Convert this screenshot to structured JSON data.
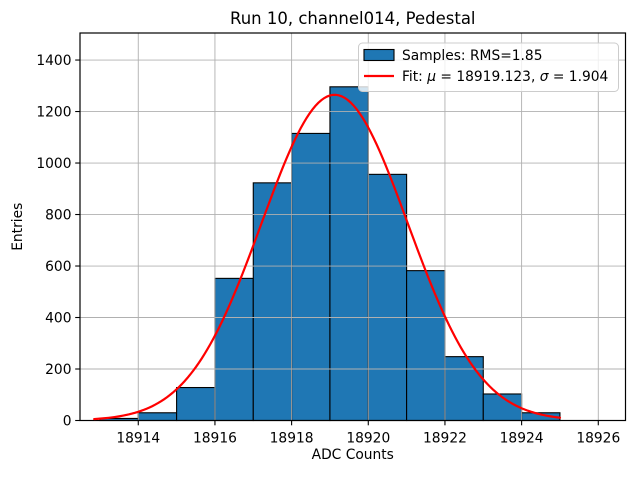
{
  "chart_data": {
    "type": "bar",
    "subtype": "histogram_with_gaussian_fit",
    "title": "Run 10, channel014, Pedestal",
    "xlabel": "ADC Counts",
    "ylabel": "Entries",
    "bin_width": 1,
    "bin_starts": [
      18913,
      18914,
      18915,
      18916,
      18917,
      18918,
      18919,
      18920,
      18921,
      18922,
      18923,
      18924
    ],
    "values": [
      8,
      30,
      128,
      552,
      923,
      1115,
      1296,
      956,
      582,
      248,
      103,
      30
    ],
    "fit": {
      "type": "gaussian",
      "mu": 18919.123,
      "sigma": 1.904,
      "amplitude": 1265,
      "x_start": 18912.85,
      "x_end": 18925.0
    },
    "xlim": [
      18912.48,
      18926.71
    ],
    "ylim": [
      0,
      1505
    ],
    "x_ticks": [
      18914,
      18916,
      18918,
      18920,
      18922,
      18924,
      18926
    ],
    "y_ticks": [
      0,
      200,
      400,
      600,
      800,
      1000,
      1200,
      1400
    ],
    "grid": true,
    "legend_position": "upper right",
    "legend": {
      "samples_label": "Samples: RMS=1.85",
      "fit_label": "Fit: μ = 18919.123, σ = 1.904"
    },
    "colors": {
      "bar_fill": "#1f77b4",
      "bar_edge": "#000000",
      "fit_line": "#ff0000",
      "grid": "#b0b0b0",
      "spine": "#000000",
      "background": "#ffffff",
      "legend_border": "#cccccc",
      "legend_fill_alpha": 0.8
    }
  }
}
